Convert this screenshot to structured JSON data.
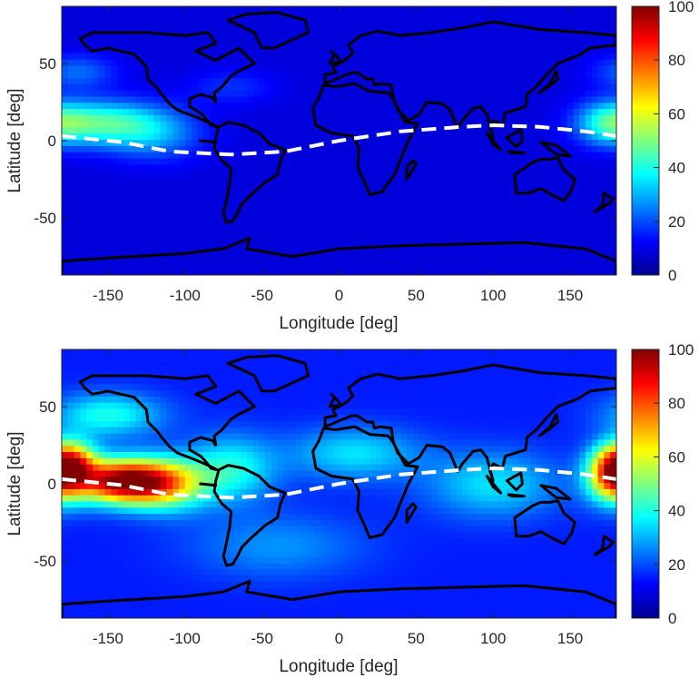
{
  "chart_data": [
    {
      "type": "heatmap",
      "title": "",
      "xlabel": "Longitude [deg]",
      "ylabel": "Latitude [deg]",
      "xlim": [
        -180,
        180
      ],
      "ylim": [
        -87,
        87
      ],
      "xticks": [
        -150,
        -100,
        -50,
        0,
        50,
        100,
        150
      ],
      "yticks": [
        50,
        0,
        -50
      ],
      "colorbar": {
        "ticks": [
          100,
          80,
          60,
          40,
          20,
          0
        ],
        "range": [
          0,
          100
        ],
        "colormap": "jet"
      },
      "base_level": 9,
      "hotspots": [
        {
          "lon": -155,
          "lat": 12,
          "value": 32,
          "spread_lon": 25,
          "spread_lat": 10
        },
        {
          "lon": -120,
          "lat": 5,
          "value": 18,
          "spread_lon": 22,
          "spread_lat": 12
        },
        {
          "lon": 175,
          "lat": 12,
          "value": 25,
          "spread_lon": 15,
          "spread_lat": 10
        },
        {
          "lon": -170,
          "lat": 45,
          "value": 14,
          "spread_lon": 18,
          "spread_lat": 8
        },
        {
          "lon": -70,
          "lat": 35,
          "value": 8,
          "spread_lon": 20,
          "spread_lat": 8
        }
      ],
      "dip_equator": {
        "lon": [
          -180,
          -140,
          -110,
          -70,
          -35,
          0,
          40,
          80,
          100,
          130,
          160,
          180
        ],
        "lat": [
          3,
          -1,
          -7,
          -9,
          -7,
          0,
          6,
          9,
          10,
          9,
          6,
          3
        ]
      }
    },
    {
      "type": "heatmap",
      "title": "",
      "xlabel": "Longitude [deg]",
      "ylabel": "Latitude [deg]",
      "xlim": [
        -180,
        180
      ],
      "ylim": [
        -87,
        87
      ],
      "xticks": [
        -150,
        -100,
        -50,
        0,
        50,
        100,
        150
      ],
      "yticks": [
        50,
        0,
        -50
      ],
      "colorbar": {
        "ticks": [
          100,
          80,
          60,
          40,
          20,
          0
        ],
        "range": [
          0,
          100
        ],
        "colormap": "jet"
      },
      "base_level": 15,
      "hotspots": [
        {
          "lon": -140,
          "lat": 2,
          "value": 85,
          "spread_lon": 22,
          "spread_lat": 10
        },
        {
          "lon": -175,
          "lat": 15,
          "value": 50,
          "spread_lon": 12,
          "spread_lat": 10
        },
        {
          "lon": -110,
          "lat": 0,
          "value": 35,
          "spread_lon": 18,
          "spread_lat": 12
        },
        {
          "lon": 178,
          "lat": 5,
          "value": 55,
          "spread_lon": 12,
          "spread_lat": 12
        },
        {
          "lon": -150,
          "lat": 45,
          "value": 25,
          "spread_lon": 25,
          "spread_lat": 10
        },
        {
          "lon": -70,
          "lat": 10,
          "value": 25,
          "spread_lon": 20,
          "spread_lat": 15
        },
        {
          "lon": 10,
          "lat": 20,
          "value": 20,
          "spread_lon": 30,
          "spread_lat": 12
        },
        {
          "lon": 100,
          "lat": 0,
          "value": 20,
          "spread_lon": 30,
          "spread_lat": 15
        },
        {
          "lon": -40,
          "lat": -40,
          "value": 12,
          "spread_lon": 40,
          "spread_lat": 15
        }
      ],
      "dip_equator": {
        "lon": [
          -180,
          -140,
          -110,
          -70,
          -35,
          0,
          40,
          80,
          100,
          130,
          160,
          180
        ],
        "lat": [
          3,
          -1,
          -7,
          -9,
          -7,
          0,
          6,
          9,
          10,
          9,
          6,
          3
        ]
      }
    }
  ]
}
